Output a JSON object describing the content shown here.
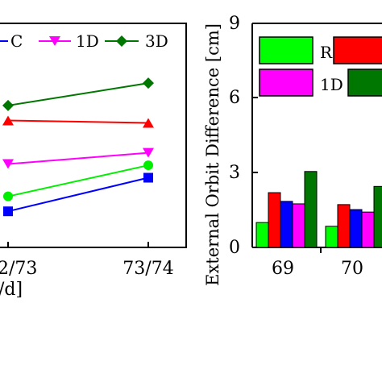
{
  "chart_data": [
    {
      "type": "line",
      "categories": [
        "2/73",
        "73/74"
      ],
      "xlabel_fragment": "/d]",
      "series": [
        {
          "name": "C",
          "color": "#0000ff",
          "marker": "square",
          "values": [
            1.45,
            2.8
          ]
        },
        {
          "name": "1D",
          "color": "#ff00ff",
          "marker": "triangle-down",
          "values": [
            3.35,
            3.8
          ]
        },
        {
          "name": "3D",
          "color": "#007700",
          "marker": "diamond",
          "values": [
            5.7,
            6.6
          ]
        },
        {
          "name": "",
          "color": "#ff0000",
          "marker": "triangle-up",
          "values": [
            5.1,
            5.0
          ]
        },
        {
          "name": "",
          "color": "#00ee00",
          "marker": "circle",
          "values": [
            2.05,
            3.3
          ]
        }
      ],
      "ylim": [
        0,
        9
      ],
      "legend_labels": [
        "C",
        "1D",
        "3D"
      ]
    },
    {
      "type": "bar",
      "categories": [
        "69",
        "70"
      ],
      "ylabel": "External Orbit Difference [cm]",
      "yticks": [
        "0",
        "3",
        "6",
        "9"
      ],
      "ylim": [
        0,
        9
      ],
      "series": [
        {
          "name": "R",
          "color": "#00ff00",
          "values": [
            1.0,
            0.85
          ]
        },
        {
          "name": "",
          "color": "#ff0000",
          "values": [
            2.2,
            1.72
          ]
        },
        {
          "name": "",
          "color": "#0000ff",
          "values": [
            1.85,
            1.52
          ]
        },
        {
          "name": "1D",
          "color": "#ff00ff",
          "values": [
            1.75,
            1.42
          ]
        },
        {
          "name": "",
          "color": "#007700",
          "values": [
            3.05,
            2.45
          ]
        }
      ],
      "legend_labels": [
        "R",
        "1D"
      ]
    }
  ]
}
